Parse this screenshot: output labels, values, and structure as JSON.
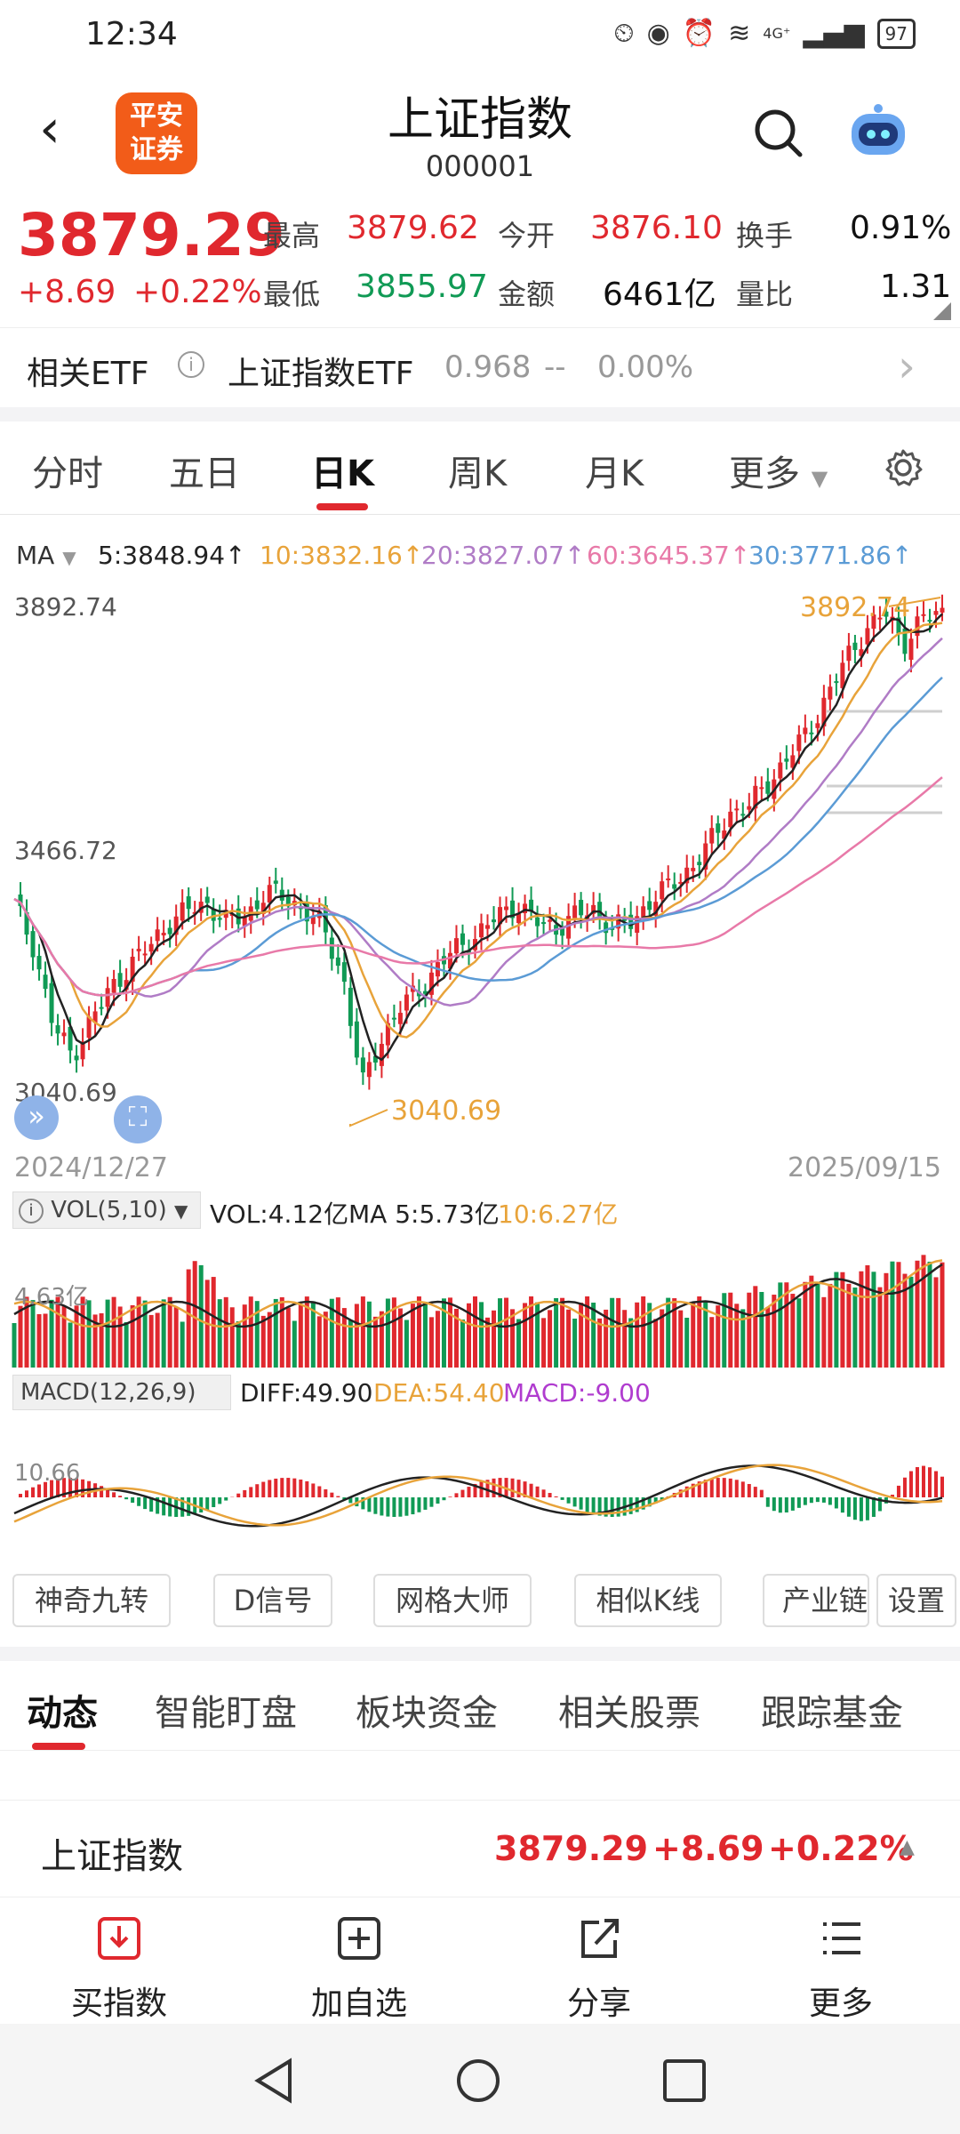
{
  "status": {
    "time": "12:34",
    "icons": [
      "alarm-icon",
      "eye-icon",
      "clock-icon",
      "wifi-icon",
      "signal-icon"
    ],
    "network": "4G⁺",
    "battery": "97"
  },
  "header": {
    "logo_text": "平安\n证券",
    "title": "上证指数",
    "code": "000001"
  },
  "quote": {
    "price": "3879.29",
    "change": "+8.69",
    "change_pct": "+0.22%",
    "fields": [
      {
        "label": "最高",
        "value": "3879.62",
        "color": "red"
      },
      {
        "label": "今开",
        "value": "3876.10",
        "color": "red"
      },
      {
        "label": "换手",
        "value": "0.91%",
        "color": "dark"
      },
      {
        "label": "最低",
        "value": "3855.97",
        "color": "green"
      },
      {
        "label": "金额",
        "value": "6461亿",
        "color": "dark"
      },
      {
        "label": "量比",
        "value": "1.31",
        "color": "dark"
      }
    ]
  },
  "etf": {
    "label": "相关ETF",
    "name": "上证指数ETF",
    "price": "0.968",
    "change": "--",
    "change_pct": "0.00%"
  },
  "period_tabs": [
    "分时",
    "五日",
    "日K",
    "周K",
    "月K",
    "更多"
  ],
  "active_period": "日K",
  "ma_legend": {
    "label": "MA",
    "items": [
      {
        "text": "5:3848.94↑",
        "color": "#222222"
      },
      {
        "text": "10:3832.16↑",
        "color": "#e8a33a"
      },
      {
        "text": "20:3827.07↑",
        "color": "#b07cc6"
      },
      {
        "text": "60:3645.37↑",
        "color": "#e879a8"
      },
      {
        "text": "30:3771.86↑",
        "color": "#5b9bd5"
      }
    ]
  },
  "kline": {
    "y_high": "3892.74",
    "y_mid": "3466.72",
    "y_low": "3040.69",
    "high_marker": "3892.74",
    "low_marker": "3040.69",
    "date_start": "2024/12/27",
    "date_end": "2025/09/15"
  },
  "chart_data": {
    "type": "candlestick",
    "ylim": [
      3040.69,
      3892.74
    ],
    "x_range": [
      "2024/12/27",
      "2025/09/15"
    ],
    "close_path": [
      3400,
      3330,
      3200,
      3150,
      3210,
      3260,
      3300,
      3330,
      3370,
      3390,
      3400,
      3370,
      3380,
      3420,
      3410,
      3390,
      3360,
      3280,
      3100,
      3180,
      3230,
      3260,
      3300,
      3330,
      3350,
      3380,
      3400,
      3370,
      3360,
      3380,
      3390,
      3360,
      3370,
      3410,
      3430,
      3460,
      3500,
      3550,
      3560,
      3600,
      3640,
      3680,
      3740,
      3800,
      3850,
      3880,
      3830,
      3870,
      3879
    ]
  },
  "vol": {
    "label": "VOL(5,10)",
    "value": "VOL:4.12亿",
    "ma5": "MA 5:5.73亿",
    "ma10": "10:6.27亿",
    "axis": "4.63亿"
  },
  "macd": {
    "label": "MACD(12,26,9)",
    "diff": "DIFF:49.90",
    "dea": "DEA:54.40",
    "macd": "MACD:-9.00",
    "axis": "10.66"
  },
  "tools": [
    "神奇九转",
    "D信号",
    "网格大师",
    "相似K线",
    "产业链",
    "设置"
  ],
  "content_tabs": [
    "动态",
    "智能盯盘",
    "板块资金",
    "相关股票",
    "跟踪基金"
  ],
  "sticky": {
    "name": "上证指数",
    "price": "3879.29",
    "change": "+8.69",
    "change_pct": "+0.22%"
  },
  "actions": [
    {
      "label": "买指数",
      "icon": "buy-index-icon"
    },
    {
      "label": "加自选",
      "icon": "add-watchlist-icon"
    },
    {
      "label": "分享",
      "icon": "share-icon"
    },
    {
      "label": "更多",
      "icon": "menu-icon"
    }
  ]
}
